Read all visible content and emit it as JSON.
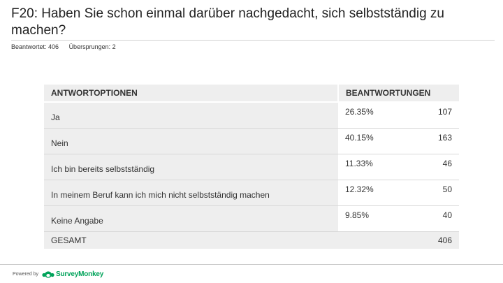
{
  "question": {
    "title": "F20: Haben Sie schon einmal darüber nachgedacht, sich selbstständig zu machen?",
    "answered_label": "Beantwortet: 406",
    "skipped_label": "Übersprungen: 2"
  },
  "table": {
    "header_options": "ANTWORTOPTIONEN",
    "header_responses": "BEANTWORTUNGEN",
    "rows": [
      {
        "label": "Ja",
        "percent": "26.35%",
        "count": "107"
      },
      {
        "label": "Nein",
        "percent": "40.15%",
        "count": "163"
      },
      {
        "label": "Ich bin bereits selbstständig",
        "percent": "11.33%",
        "count": "46"
      },
      {
        "label": "In meinem Beruf kann ich mich nicht selbstständig machen",
        "percent": "12.32%",
        "count": "50"
      },
      {
        "label": "Keine Angabe",
        "percent": "9.85%",
        "count": "40"
      }
    ],
    "total_label": "GESAMT",
    "total_count": "406"
  },
  "footer": {
    "powered_by": "Powered by",
    "brand_name": "SurveyMonkey",
    "brand_color": "#00a35a",
    "logo_icon": "surveymonkey-logo-icon"
  }
}
